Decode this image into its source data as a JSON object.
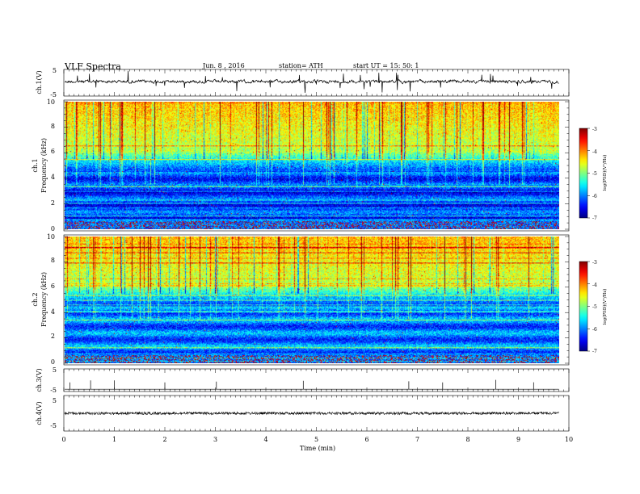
{
  "header": {
    "title": "VLF  Spectra",
    "date": "Jun. 8  , 2016",
    "station": "station= ATH",
    "start": "start  UT =    15: 50: 1"
  },
  "chart_data": [
    {
      "type": "line",
      "panel": "ch1-waveform",
      "ylabel": "ch.1(V)",
      "ylim": [
        -5,
        5
      ],
      "yticks": [
        "5",
        "-5"
      ],
      "xlim": [
        0,
        10
      ],
      "baseline_V": 0,
      "note": "continuous noisy waveform with spikes"
    },
    {
      "type": "heatmap",
      "panel": "ch1-spectrogram",
      "ylabel_top": "ch.1",
      "ylabel": "Frequency  (kHz)",
      "ylim": [
        0,
        10
      ],
      "yticks": [
        "0",
        "2",
        "4",
        "6",
        "8",
        "10"
      ],
      "xlim": [
        0,
        9.8
      ],
      "colorbar": {
        "label": "log(PSD)(V²/Hz)",
        "range": [
          -7,
          -3
        ],
        "ticks": [
          "-3",
          "-4",
          "-5",
          "-6",
          "-7"
        ],
        "colormap": "jet"
      }
    },
    {
      "type": "heatmap",
      "panel": "ch2-spectrogram",
      "ylabel_top": "ch.2",
      "ylabel": "Frequency  (kHz)",
      "ylim": [
        0,
        10
      ],
      "yticks": [
        "0",
        "2",
        "4",
        "6",
        "8",
        "10"
      ],
      "xlim": [
        0,
        9.8
      ],
      "colorbar": {
        "label": "log(PSD)(V²/Hz)",
        "range": [
          -7,
          -3
        ],
        "ticks": [
          "-3",
          "-4",
          "-5",
          "-6",
          "-7"
        ],
        "colormap": "jet"
      }
    },
    {
      "type": "line",
      "panel": "ch3-waveform",
      "ylabel": "ch.3(V)",
      "ylim": [
        -5,
        5
      ],
      "yticks": [
        "5",
        "-5"
      ],
      "baseline_V": -4,
      "spikes_min": [
        0.12,
        0.53,
        1.0,
        2.0,
        3.02,
        4.74,
        6.83,
        7.5,
        8.55,
        9.3
      ]
    },
    {
      "type": "line",
      "panel": "ch4-waveform",
      "ylabel": "ch.4(V)",
      "ylim": [
        -5,
        5
      ],
      "yticks": [
        "5",
        "-5"
      ],
      "baseline_V": 0,
      "xlabel": "Time  (min)",
      "xlim": [
        0,
        10
      ],
      "xticks": [
        "0",
        "1",
        "2",
        "3",
        "4",
        "5",
        "6",
        "7",
        "8",
        "9",
        "10"
      ]
    }
  ]
}
